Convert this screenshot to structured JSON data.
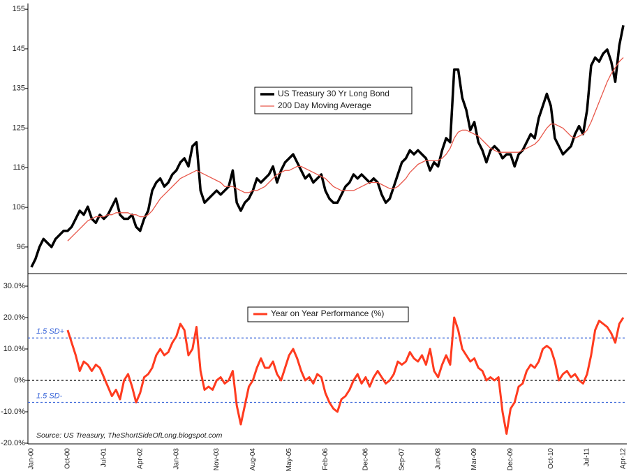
{
  "chart_data": [
    {
      "type": "line",
      "ylim": [
        89.4,
        155.9
      ],
      "yticks": [
        96,
        {
          "value": 105.83,
          "label": "106"
        },
        {
          "value": 115.67,
          "label": "116"
        },
        {
          "value": 125.5,
          "label": "125"
        },
        {
          "value": 135.33,
          "label": "135"
        },
        {
          "value": 145.17,
          "label": "145"
        },
        155
      ],
      "grid": false,
      "legend": "center",
      "series": [
        {
          "name": "US Treasury 30 Yr Long Bond",
          "color": "#000000",
          "values": [
            91,
            93,
            96,
            98,
            97,
            96,
            98,
            99,
            100,
            100,
            101,
            103,
            105,
            104,
            106,
            103,
            102,
            104,
            103,
            104,
            106,
            108,
            104,
            103,
            103,
            104,
            101,
            100,
            103,
            105,
            110,
            112,
            113,
            111,
            112,
            114,
            115,
            117,
            118,
            116,
            121,
            122,
            110,
            107,
            108,
            109,
            110,
            109,
            110,
            111,
            115,
            107,
            105,
            107,
            108,
            110,
            113,
            112,
            113,
            114,
            116,
            112,
            115,
            117,
            118,
            119,
            117,
            115,
            113,
            114,
            112,
            113,
            114,
            110,
            108,
            107,
            107,
            109,
            111,
            112,
            114,
            113,
            114,
            113,
            112,
            113,
            112,
            109,
            107,
            108,
            111,
            114,
            117,
            118,
            120,
            119,
            120,
            119,
            118,
            115,
            117,
            116,
            120,
            123,
            122,
            140,
            140,
            133,
            130,
            125,
            127,
            122,
            120,
            117,
            120,
            121,
            120,
            118,
            119,
            119,
            116,
            119,
            120,
            122,
            124,
            123,
            128,
            131,
            134,
            131,
            123,
            121,
            119,
            120,
            121,
            124,
            126,
            124,
            130,
            141,
            143,
            142,
            144,
            145,
            142,
            137,
            146,
            151
          ]
        },
        {
          "name": "200 Day Moving Average",
          "color": "#e8574a",
          "values": [
            null,
            null,
            null,
            null,
            null,
            null,
            null,
            null,
            null,
            97.5,
            98.5,
            99.5,
            100.5,
            101.5,
            102.5,
            103,
            103.5,
            103.5,
            103.5,
            104,
            104,
            104.5,
            104.5,
            104.5,
            104.5,
            104,
            104,
            103.5,
            103.5,
            104,
            105,
            106.5,
            108,
            109,
            110,
            111,
            112,
            113,
            113.5,
            114,
            114.5,
            115,
            114.5,
            114,
            113.5,
            113,
            112.5,
            112,
            111,
            111,
            111,
            110.5,
            110,
            109.5,
            109.5,
            110,
            110,
            110.5,
            111,
            112,
            113,
            114,
            114.5,
            115,
            115,
            115.5,
            116,
            116,
            115.5,
            115,
            114.5,
            114,
            113.5,
            113,
            112,
            111,
            110.5,
            110,
            110,
            110,
            110,
            110.5,
            111,
            111.5,
            112,
            112,
            112,
            111.5,
            111,
            110.5,
            110.5,
            111,
            112,
            113,
            114.5,
            115.5,
            116.5,
            117,
            117.5,
            117.5,
            117.5,
            117.5,
            118,
            119,
            120.5,
            123,
            124.5,
            125,
            125,
            124.5,
            124,
            123.5,
            122.5,
            121.5,
            120.5,
            120,
            119.5,
            119.5,
            119.5,
            119.5,
            119.5,
            119.5,
            120,
            120.5,
            121,
            121.5,
            122.5,
            124,
            125.5,
            126.5,
            126.5,
            126,
            125.5,
            124.5,
            123.5,
            123,
            123.5,
            124,
            125,
            127,
            129.5,
            132,
            134.5,
            137,
            139,
            140.5,
            142,
            143
          ]
        }
      ]
    },
    {
      "type": "line",
      "ylim": [
        -20,
        30
      ],
      "yticks": [
        {
          "value": 30,
          "label": "30.0%"
        },
        {
          "value": 20,
          "label": "20.0%"
        },
        {
          "value": 10,
          "label": "10.0%"
        },
        {
          "value": 0,
          "label": "0%"
        },
        {
          "value": -10,
          "label": "-10.0%"
        },
        {
          "value": -20,
          "label": "-20.0%"
        }
      ],
      "grid": false,
      "zero_line": true,
      "legend": "top",
      "reference_lines": [
        {
          "value": 13.5,
          "label": "1.5 SD+"
        },
        {
          "value": -7,
          "label": "1.5 SD-"
        }
      ],
      "note": "Source: US Treasury, TheShortSideOfLong.blogspot.com",
      "categories": [
        "Jan-00",
        null,
        null,
        null,
        null,
        null,
        null,
        null,
        null,
        "Oct-00",
        null,
        null,
        null,
        null,
        null,
        null,
        null,
        null,
        "Jul-01",
        null,
        null,
        null,
        null,
        null,
        null,
        null,
        null,
        "Apr-02",
        null,
        null,
        null,
        null,
        null,
        null,
        null,
        null,
        "Jan-03",
        null,
        null,
        null,
        null,
        null,
        null,
        null,
        null,
        null,
        "Nov-03",
        null,
        null,
        null,
        null,
        null,
        null,
        null,
        null,
        "Aug-04",
        null,
        null,
        null,
        null,
        null,
        null,
        null,
        null,
        "May-05",
        null,
        null,
        null,
        null,
        null,
        null,
        null,
        null,
        "Feb-06",
        null,
        null,
        null,
        null,
        null,
        null,
        null,
        null,
        null,
        "Dec-06",
        null,
        null,
        null,
        null,
        null,
        null,
        null,
        null,
        "Sep-07",
        null,
        null,
        null,
        null,
        null,
        null,
        null,
        null,
        "Jun-08",
        null,
        null,
        null,
        null,
        null,
        null,
        null,
        null,
        "Mar-09",
        null,
        null,
        null,
        null,
        null,
        null,
        null,
        null,
        "Dec-09",
        null,
        null,
        null,
        null,
        null,
        null,
        null,
        null,
        null,
        "Oct-10",
        null,
        null,
        null,
        null,
        null,
        null,
        null,
        null,
        "Jul-11",
        null,
        null,
        null,
        null,
        null,
        null,
        null,
        null,
        "Apr-12"
      ],
      "series": [
        {
          "name": "Year on Year Performance (%)",
          "color": "#ff3b1f",
          "values": [
            null,
            null,
            null,
            null,
            null,
            null,
            null,
            null,
            null,
            16,
            12,
            8,
            3,
            6,
            5,
            3,
            5,
            4,
            1,
            -2,
            -5,
            -3,
            -6,
            0,
            2,
            -2,
            -7,
            -4,
            1,
            2,
            4,
            8,
            10,
            8,
            9,
            12,
            14,
            18,
            16,
            8,
            10,
            17,
            3,
            -3,
            -2,
            -3,
            0,
            1,
            -1,
            0,
            3,
            -8,
            -14,
            -8,
            -2,
            0,
            4,
            7,
            4,
            4,
            6,
            2,
            0,
            4,
            8,
            10,
            7,
            3,
            0,
            1,
            -1,
            2,
            1,
            -4,
            -7,
            -9,
            -10,
            -6,
            -5,
            -3,
            0,
            2,
            -1,
            1,
            -2,
            1,
            3,
            1,
            -1,
            0,
            2,
            6,
            5,
            6,
            9,
            7,
            6,
            8,
            5,
            10,
            3,
            1,
            5,
            8,
            5,
            20,
            16,
            10,
            8,
            6,
            7,
            4,
            3,
            0,
            1,
            0,
            1,
            -10,
            -17,
            -9,
            -7,
            -2,
            -1,
            3,
            5,
            4,
            6,
            10,
            11,
            10,
            6,
            0,
            2,
            3,
            1,
            2,
            0,
            -1,
            2,
            8,
            16,
            19,
            18,
            17,
            15,
            12,
            18,
            20
          ]
        }
      ]
    }
  ]
}
